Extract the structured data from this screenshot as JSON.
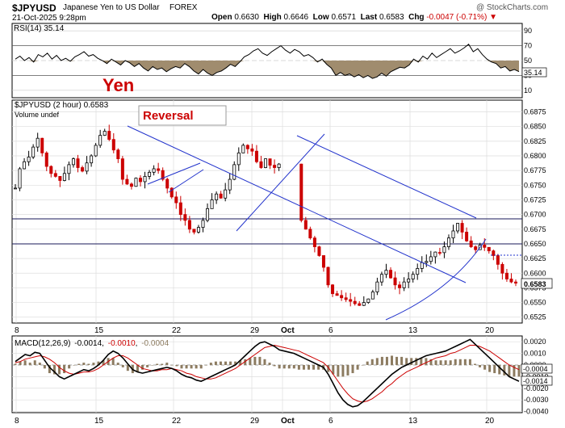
{
  "header": {
    "symbol": "$JPYUSD",
    "name": "Japanese Yen to US Dollar",
    "exchange": "FOREX",
    "watermark": "@ StockCharts.com",
    "date": "21-Oct-2025 9:28pm",
    "open_label": "Open",
    "open_value": "0.6630",
    "high_label": "High",
    "high_value": "0.6646",
    "low_label": "Low",
    "low_value": "0.6571",
    "last_label": "Last",
    "last_value": "0.6583",
    "chg_label": "Chg",
    "chg_value": "-0.0047 (-0.71%)",
    "down_color": "#cc0000"
  },
  "annotations": {
    "yen": "Yen",
    "reversal": "Reversal"
  },
  "colors": {
    "up": "#000000",
    "down": "#cc0000",
    "trend": "#2233cc",
    "macd": "#000000",
    "signal": "#cc0000",
    "hist": "#8c7b60",
    "rsi": "#000000",
    "rsi_fill": "#a08c6e"
  },
  "chart_data": [
    {
      "type": "line",
      "title": "RSI(14) 35.14",
      "ylim": [
        0,
        100
      ],
      "ticks": [
        10,
        30,
        50,
        70,
        90
      ],
      "last_value": 35.14,
      "last_label": "35.14",
      "overbought": 70,
      "oversold": 30,
      "values": [
        52,
        56,
        50,
        54,
        48,
        58,
        55,
        60,
        52,
        57,
        50,
        53,
        49,
        55,
        58,
        62,
        56,
        58,
        53,
        50,
        46,
        52,
        48,
        44,
        50,
        47,
        42,
        46,
        40,
        36,
        42,
        38,
        40,
        35,
        39,
        42,
        40,
        46,
        42,
        36,
        32,
        38,
        33,
        30,
        34,
        36,
        40,
        45,
        42,
        48,
        55,
        58,
        63,
        66,
        60,
        57,
        62,
        66,
        70,
        64,
        60,
        65,
        62,
        56,
        58,
        54,
        48,
        52,
        45,
        40,
        30,
        34,
        30,
        32,
        28,
        31,
        27,
        30,
        26,
        28,
        33,
        29,
        35,
        38,
        41,
        40,
        44,
        52,
        48,
        56,
        52,
        60,
        54,
        58,
        62,
        66,
        60,
        63,
        67,
        72,
        62,
        66,
        58,
        52,
        48,
        46,
        40,
        42,
        36,
        38,
        35.14
      ]
    },
    {
      "type": "candlestick",
      "title": "$JPYUSD (2 hour) 0.6583",
      "subtitle": "Volume undef",
      "ylim": [
        0.6515,
        0.6895
      ],
      "yticks": [
        0.6525,
        0.655,
        0.6575,
        0.66,
        0.6625,
        0.665,
        0.6675,
        0.67,
        0.6725,
        0.675,
        0.6775,
        0.68,
        0.6825,
        0.685,
        0.6875
      ],
      "x_tick_labels": [
        "8",
        "15",
        "22",
        "29",
        "Oct",
        "6",
        "13",
        "20"
      ],
      "last_label": "0.6583",
      "bars": 120,
      "path": [
        0.6745,
        0.6778,
        0.679,
        0.6798,
        0.6815,
        0.683,
        0.6805,
        0.6782,
        0.677,
        0.6765,
        0.6758,
        0.677,
        0.6785,
        0.6795,
        0.678,
        0.6774,
        0.6788,
        0.68,
        0.6818,
        0.6835,
        0.6842,
        0.6828,
        0.681,
        0.6795,
        0.676,
        0.6752,
        0.6748,
        0.6762,
        0.6756,
        0.6765,
        0.6772,
        0.6778,
        0.6775,
        0.676,
        0.6745,
        0.673,
        0.672,
        0.67,
        0.669,
        0.6675,
        0.667,
        0.6678,
        0.669,
        0.671,
        0.6725,
        0.6735,
        0.6728,
        0.6742,
        0.676,
        0.6785,
        0.6805,
        0.6818,
        0.6812,
        0.6808,
        0.679,
        0.678,
        0.6795,
        0.6784,
        0.678,
        0.6786,
        null,
        null,
        null,
        null,
        0.669,
        0.6675,
        0.666,
        0.6645,
        0.663,
        0.661,
        0.658,
        0.6565,
        0.6562,
        0.6558,
        0.6555,
        0.6552,
        0.6548,
        0.6545,
        0.655,
        0.6556,
        0.6568,
        0.6585,
        0.6598,
        0.6605,
        0.6592,
        0.658,
        0.6575,
        0.6585,
        0.659,
        0.6598,
        0.6608,
        0.6618,
        0.662,
        0.6628,
        0.6636,
        0.6635,
        0.6645,
        0.666,
        0.6672,
        0.6685,
        0.667,
        0.6655,
        0.6645,
        0.664,
        0.6648,
        0.6644,
        0.6638,
        0.663,
        0.6615,
        0.66,
        0.659,
        0.6585,
        0.6583
      ]
    },
    {
      "type": "line",
      "title": "MACD(12,26,9)",
      "values_label": [
        "-0.0014",
        "-0.0010",
        "-0.0004"
      ],
      "ylim": [
        -0.0041,
        0.0025
      ],
      "yticks": [
        0.002,
        0.001,
        0.0,
        -0.001,
        -0.002,
        -0.003,
        -0.004
      ],
      "tick_labels": [
        "0.0020",
        "0.0010",
        "0.0000",
        "-0.0010",
        "-0.0020",
        "-0.0030",
        "-0.0040"
      ],
      "last_labels": [
        "-0.0004",
        "-0.0014"
      ],
      "x_tick_labels": [
        "8",
        "15",
        "22",
        "29",
        "Oct",
        "6",
        "13",
        "20"
      ],
      "series": [
        {
          "name": "MACD",
          "values": [
            0.0003,
            0.0006,
            0.0009,
            0.0008,
            0.0011,
            0.001,
            0.0004,
            -0.0002,
            -0.0006,
            -0.001,
            -0.0012,
            -0.001,
            -0.0008,
            -0.0006,
            -0.0004,
            -0.0005,
            -0.0003,
            0.0,
            0.0004,
            0.0009,
            0.0012,
            0.001,
            0.0006,
            0.0001,
            -0.0004,
            -0.0006,
            -0.0007,
            -0.0006,
            -0.0005,
            -0.0004,
            -0.0003,
            -0.0002,
            -0.0003,
            -0.0005,
            -0.0008,
            -0.001,
            -0.0011,
            -0.0013,
            -0.0014,
            -0.0012,
            -0.001,
            -0.0008,
            -0.0006,
            -0.0004,
            -0.0002,
            0.0,
            0.0004,
            0.0008,
            0.0012,
            0.0016,
            0.0019,
            0.002,
            0.0018,
            0.0016,
            0.0013,
            0.0012,
            0.0011,
            0.001,
            0.0008,
            0.0006,
            0.0004,
            0.0002,
            0.0,
            -0.0002,
            -0.0008,
            -0.0016,
            -0.0024,
            -0.003,
            -0.0034,
            -0.0036,
            -0.0035,
            -0.0032,
            -0.0028,
            -0.0024,
            -0.002,
            -0.0016,
            -0.0012,
            -0.0008,
            -0.0005,
            -0.0002,
            0.0,
            0.0002,
            0.0004,
            0.0006,
            0.0008,
            0.0009,
            0.001,
            0.0011,
            0.0012,
            0.0014,
            0.0016,
            0.0018,
            0.002,
            0.0022,
            0.0018,
            0.0014,
            0.001,
            0.0006,
            0.0002,
            -0.0002,
            -0.0006,
            -0.001,
            -0.0012,
            -0.0014
          ]
        },
        {
          "name": "Signal",
          "values": [
            0.0002,
            0.0003,
            0.0005,
            0.0006,
            0.0007,
            0.0008,
            0.0007,
            0.0005,
            0.0002,
            -0.0002,
            -0.0005,
            -0.0007,
            -0.0008,
            -0.0007,
            -0.0006,
            -0.0006,
            -0.0005,
            -0.0003,
            0.0,
            0.0003,
            0.0006,
            0.0008,
            0.0008,
            0.0006,
            0.0003,
            0.0,
            -0.0003,
            -0.0004,
            -0.0005,
            -0.0005,
            -0.0004,
            -0.0004,
            -0.0003,
            -0.0004,
            -0.0005,
            -0.0007,
            -0.0008,
            -0.001,
            -0.0011,
            -0.0012,
            -0.0012,
            -0.0011,
            -0.0009,
            -0.0007,
            -0.0005,
            -0.0003,
            0.0,
            0.0003,
            0.0006,
            0.0009,
            0.0012,
            0.0015,
            0.0016,
            0.0017,
            0.0016,
            0.0015,
            0.0014,
            0.0013,
            0.0012,
            0.001,
            0.0008,
            0.0006,
            0.0004,
            0.0002,
            -0.0002,
            -0.0008,
            -0.0014,
            -0.002,
            -0.0025,
            -0.0029,
            -0.0031,
            -0.0032,
            -0.0031,
            -0.0029,
            -0.0026,
            -0.0023,
            -0.0019,
            -0.0016,
            -0.0012,
            -0.0009,
            -0.0006,
            -0.0004,
            -0.0002,
            0.0,
            0.0002,
            0.0004,
            0.0006,
            0.0007,
            0.0008,
            0.001,
            0.0011,
            0.0013,
            0.0015,
            0.0017,
            0.0017,
            0.0016,
            0.0014,
            0.0012,
            0.0009,
            0.0006,
            0.0003,
            0.0,
            -0.0002,
            -0.0004
          ]
        }
      ]
    }
  ]
}
